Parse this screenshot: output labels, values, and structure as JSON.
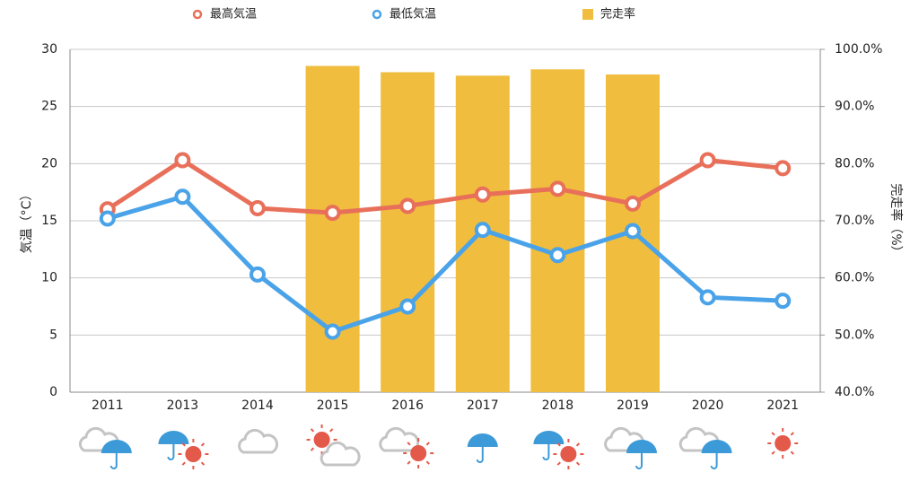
{
  "chart_data": {
    "type": "bar-line",
    "categories": [
      "2011",
      "2013",
      "2014",
      "2015",
      "2016",
      "2017",
      "2018",
      "2019",
      "2020",
      "2021"
    ],
    "ylabel": "気温（°C）",
    "y2label": "完走率（%）",
    "ylim": [
      0,
      30
    ],
    "yticks": [
      0,
      5,
      10,
      15,
      20,
      25,
      30
    ],
    "y2lim": [
      40,
      100
    ],
    "y2ticks": [
      {
        "value": 40,
        "label": "40.0%"
      },
      {
        "value": 50,
        "label": "50.0%"
      },
      {
        "value": 60,
        "label": "60.0%"
      },
      {
        "value": 70,
        "label": "70.0%"
      },
      {
        "value": 80,
        "label": "80.0%"
      },
      {
        "value": 90,
        "label": "90.0%"
      },
      {
        "value": 100,
        "label": "100.0%"
      }
    ],
    "grid": true,
    "legend": "top",
    "series": [
      {
        "name": "最高気温",
        "type": "line",
        "color": "#e8705a",
        "values": [
          16.0,
          20.3,
          16.1,
          15.7,
          16.3,
          17.3,
          17.8,
          16.5,
          20.3,
          19.6
        ]
      },
      {
        "name": "最低気温",
        "type": "line",
        "color": "#4aa3e8",
        "values": [
          15.2,
          17.1,
          10.3,
          5.3,
          7.5,
          14.2,
          12.0,
          14.1,
          8.3,
          8.0
        ]
      },
      {
        "name": "完走率",
        "type": "bar",
        "axis": "y2",
        "color": "#f0bd3e",
        "values": [
          null,
          null,
          null,
          97.1,
          96.0,
          95.4,
          96.5,
          95.6,
          null,
          null
        ]
      }
    ]
  }
}
